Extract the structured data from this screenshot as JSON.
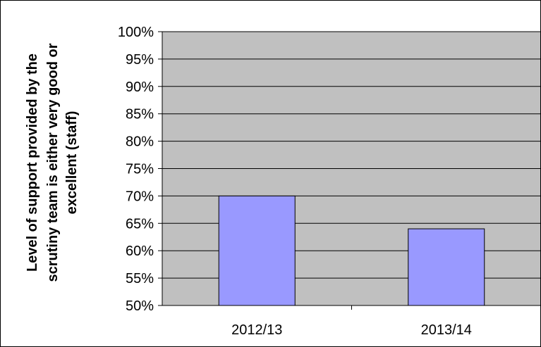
{
  "chart_data": {
    "type": "bar",
    "title": "",
    "xlabel": "",
    "ylabel_lines": [
      "Level of support provided by the",
      "scrutiny team is either very good or",
      "excellent (staff)"
    ],
    "categories": [
      "2012/13",
      "2013/14"
    ],
    "values": [
      70,
      64
    ],
    "ylim": [
      50,
      100
    ],
    "y_tick_step": 5,
    "y_tick_labels": [
      "50%",
      "55%",
      "60%",
      "65%",
      "70%",
      "75%",
      "80%",
      "85%",
      "90%",
      "95%",
      "100%"
    ],
    "grid": true,
    "legend": "none",
    "colors": {
      "plot_background": "#c0c0c0",
      "bar_fill": "#9999ff",
      "bar_stroke": "#000000",
      "gridline": "#000000"
    }
  }
}
